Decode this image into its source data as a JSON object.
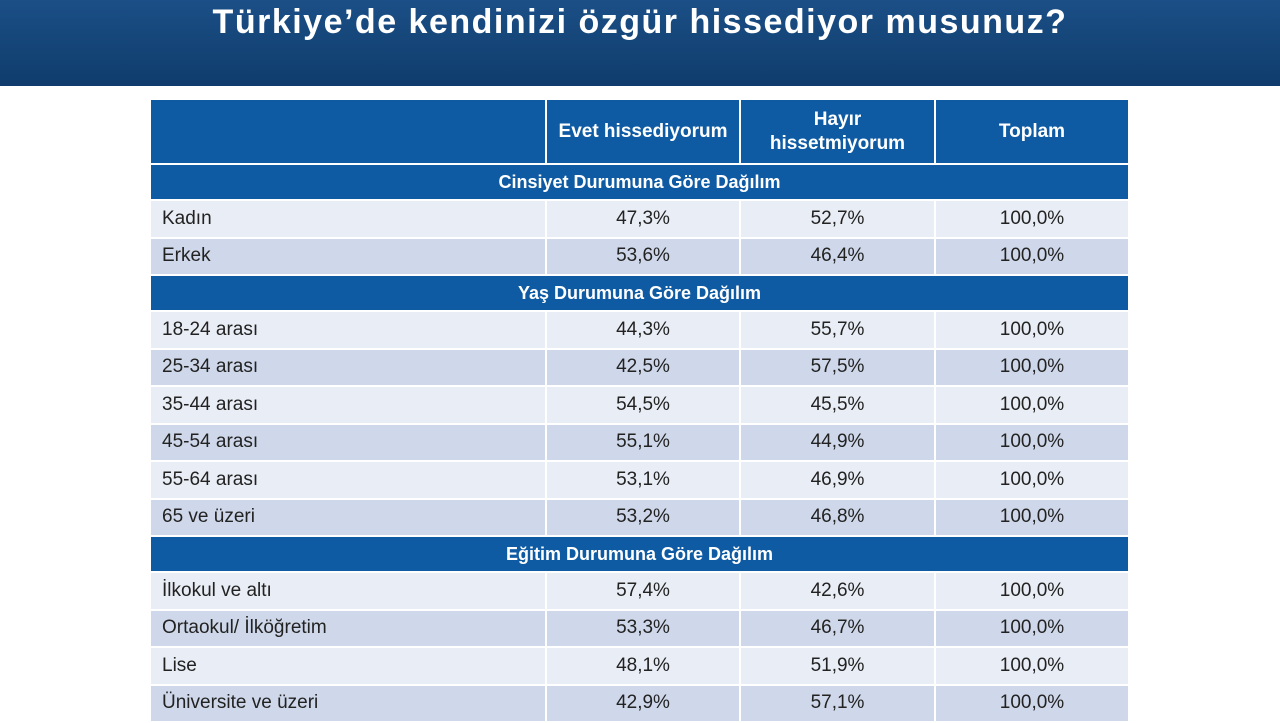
{
  "header": {
    "title": "Türkiye’de kendinizi özgür hissediyor musunuz?"
  },
  "table": {
    "columns": [
      "Evet hissediyorum",
      "Hayır hissetmiyorum",
      "Toplam"
    ],
    "sections": [
      {
        "title": "Cinsiyet Durumuna Göre Dağılım",
        "rows": [
          [
            "Kadın",
            "47,3%",
            "52,7%",
            "100,0%"
          ],
          [
            "Erkek",
            "53,6%",
            "46,4%",
            "100,0%"
          ]
        ]
      },
      {
        "title": "Yaş Durumuna Göre Dağılım",
        "rows": [
          [
            "18-24 arası",
            "44,3%",
            "55,7%",
            "100,0%"
          ],
          [
            "25-34 arası",
            "42,5%",
            "57,5%",
            "100,0%"
          ],
          [
            "35-44 arası",
            "54,5%",
            "45,5%",
            "100,0%"
          ],
          [
            "45-54 arası",
            "55,1%",
            "44,9%",
            "100,0%"
          ],
          [
            "55-64 arası",
            "53,1%",
            "46,9%",
            "100,0%"
          ],
          [
            "65 ve üzeri",
            "53,2%",
            "46,8%",
            "100,0%"
          ]
        ]
      },
      {
        "title": "Eğitim Durumuna Göre Dağılım",
        "rows": [
          [
            "İlkokul ve altı",
            "57,4%",
            "42,6%",
            "100,0%"
          ],
          [
            "Ortaokul/ İlköğretim",
            "53,3%",
            "46,7%",
            "100,0%"
          ],
          [
            "Lise",
            "48,1%",
            "51,9%",
            "100,0%"
          ],
          [
            "Üniversite ve üzeri",
            "42,9%",
            "57,1%",
            "100,0%"
          ]
        ]
      }
    ]
  }
}
